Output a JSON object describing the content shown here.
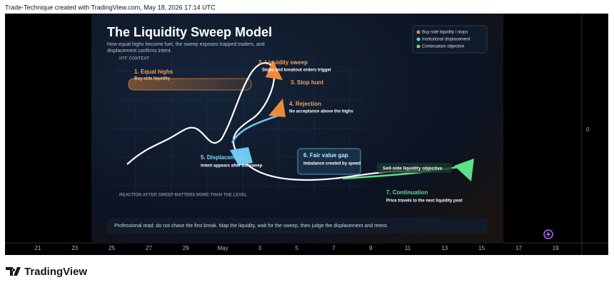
{
  "header": {
    "text": "Trade-Technique created with TradingView.com, May 18, 2026 17:14 UTC"
  },
  "image": {
    "title": "The Liquidity Sweep Model",
    "subtitle": [
      "How equal highs become fuel, the sweep exposes trapped traders, and",
      "displacement confirms intent."
    ],
    "legend": [
      "Buy-side liquidity / stops",
      "Institutional displacement",
      "Continuation objective"
    ],
    "context_label": "HTF CONTEXT",
    "annotations": [
      {
        "title": "1. Equal highs",
        "text": "Buy-side liquidity"
      },
      {
        "title": "2. Liquidity sweep",
        "text": "Stops and breakout orders trigger"
      },
      {
        "title": "3. Stop hunt"
      },
      {
        "title": "4. Rejection",
        "text": "No acceptance above the highs"
      },
      {
        "title": "5. Displacement",
        "text": "Intent appears after the sweep"
      },
      {
        "title": "6. Fair value gap",
        "text": "Imbalance created by speed"
      },
      {
        "title": "7. Continuation",
        "text": "Price travels to the next liquidity pool"
      }
    ],
    "objective_label": "Sell-side liquidity objective",
    "reaction_label": "REACTION AFTER SWEEP MATTERS MORE THAN THE LEVEL",
    "note": "Professional read: do not chase the first break. Map the liquidity, wait for the sweep, then judge the displacement and retest."
  },
  "price_axis": {
    "labels": [
      "0"
    ]
  },
  "time_axis": {
    "labels": [
      "21",
      "23",
      "25",
      "27",
      "29",
      "May",
      "3",
      "5",
      "7",
      "9",
      "11",
      "13",
      "15",
      "17",
      "19"
    ]
  },
  "footer": {
    "logo": "TradingView"
  }
}
